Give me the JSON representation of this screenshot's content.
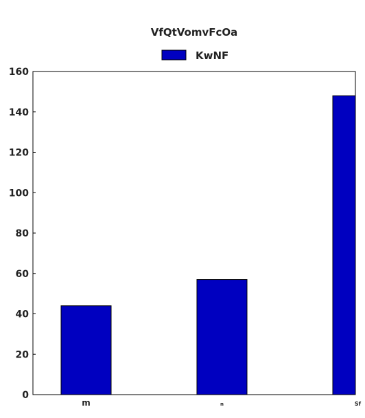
{
  "chart_data": {
    "type": "bar",
    "title": "VfQtVomvFcOa",
    "xlabel": "",
    "ylabel": "",
    "categories": [
      "m",
      "n",
      "Sf"
    ],
    "series": [
      {
        "name": "KwNF",
        "values": [
          44,
          57,
          148
        ],
        "color": "#0000c0"
      }
    ],
    "ylim": [
      0,
      160
    ],
    "yticks": [
      0,
      20,
      40,
      60,
      80,
      100,
      120,
      140,
      160
    ],
    "grid": false,
    "legend_position": "top-center"
  }
}
